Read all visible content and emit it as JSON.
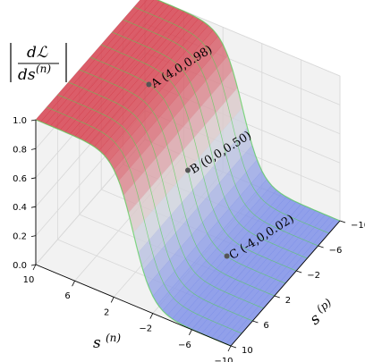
{
  "chart_data": {
    "type": "surface3d",
    "zlabel": {
      "numerator": "dℒ",
      "denominator": "ds",
      "denominator_sup": "(n)"
    },
    "xlabel": {
      "base": "s",
      "sup": "(n)"
    },
    "ylabel": {
      "base": "s",
      "sup": "(p)"
    },
    "xlim": [
      10,
      -10
    ],
    "ylim": [
      -10,
      10
    ],
    "zlim": [
      0.0,
      1.0
    ],
    "x_ticks": [
      "10",
      "6",
      "2",
      "−2",
      "−6",
      "−10"
    ],
    "y_ticks": [
      "−10",
      "−6",
      "−2",
      "2",
      "6",
      "10"
    ],
    "z_ticks": [
      "0.0",
      "0.2",
      "0.4",
      "0.6",
      "0.8",
      "1.0"
    ],
    "function": "sigmoid(s_n), independent of s_p",
    "colormap": "coolwarm",
    "grid": true,
    "points": [
      {
        "name": "A",
        "label": "A (4,0,0.98)",
        "x": 4,
        "y": 0,
        "z": 0.98
      },
      {
        "name": "B",
        "label": "B (0,0,0.50)",
        "x": 0,
        "y": 0,
        "z": 0.5
      },
      {
        "name": "C",
        "label": "C (-4,0,0.02)",
        "x": -4,
        "y": 0,
        "z": 0.02
      }
    ],
    "colors": {
      "high": "#d63c4a",
      "mid": "#dcdddd",
      "low": "#7b8ee8",
      "wire": "#5fd35f",
      "point": "#555555"
    }
  }
}
